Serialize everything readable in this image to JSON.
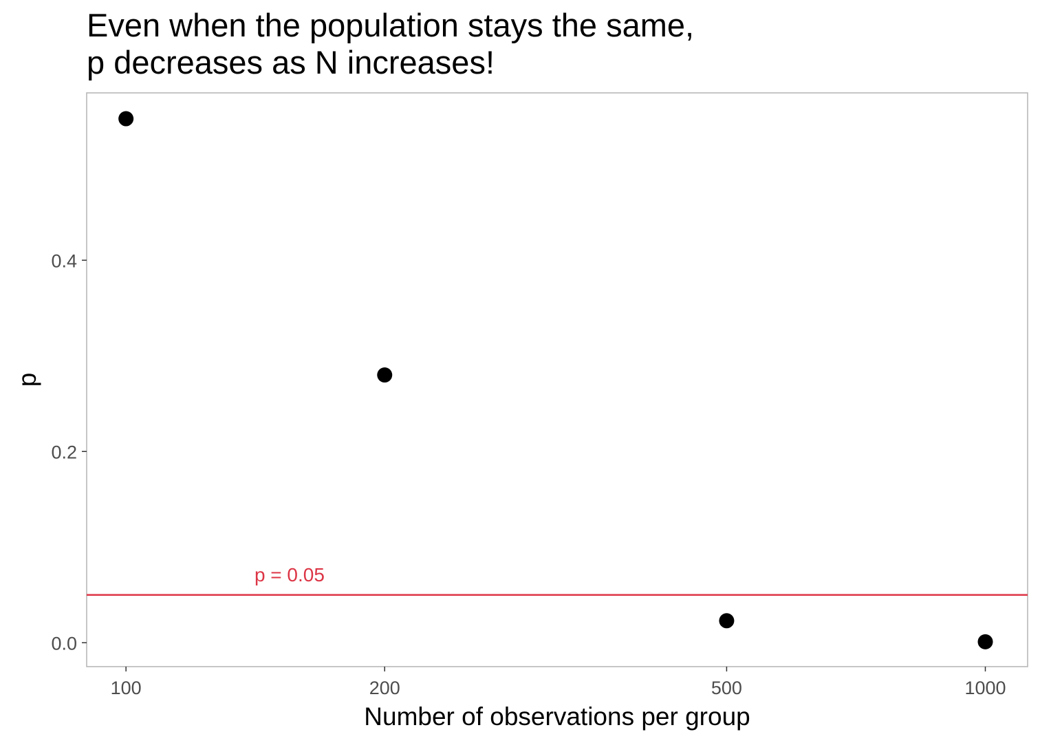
{
  "chart_data": {
    "type": "scatter",
    "title": [
      "Even when the population stays the same,",
      "p decreases as N increases!"
    ],
    "xlabel": "Number of observations per group",
    "ylabel": "p",
    "x_scale": "log10",
    "xlim": [
      90,
      1120
    ],
    "ylim": [
      -0.025,
      0.575
    ],
    "x_ticks": [
      100,
      200,
      500,
      1000
    ],
    "x_tick_labels": [
      "100",
      "200",
      "500",
      "1000"
    ],
    "y_ticks": [
      0.0,
      0.2,
      0.4
    ],
    "y_tick_labels": [
      "0.0",
      "0.2",
      "0.4"
    ],
    "points": [
      {
        "x": 100,
        "y": 0.548
      },
      {
        "x": 200,
        "y": 0.28
      },
      {
        "x": 500,
        "y": 0.023
      },
      {
        "x": 1000,
        "y": 0.001
      }
    ],
    "point_color": "#000000",
    "grid": false,
    "reference_line": {
      "y": 0.05,
      "label": "p = 0.05",
      "label_x": 155,
      "color": "#dc3545"
    },
    "panel_border_color": "#b3b3b3"
  }
}
